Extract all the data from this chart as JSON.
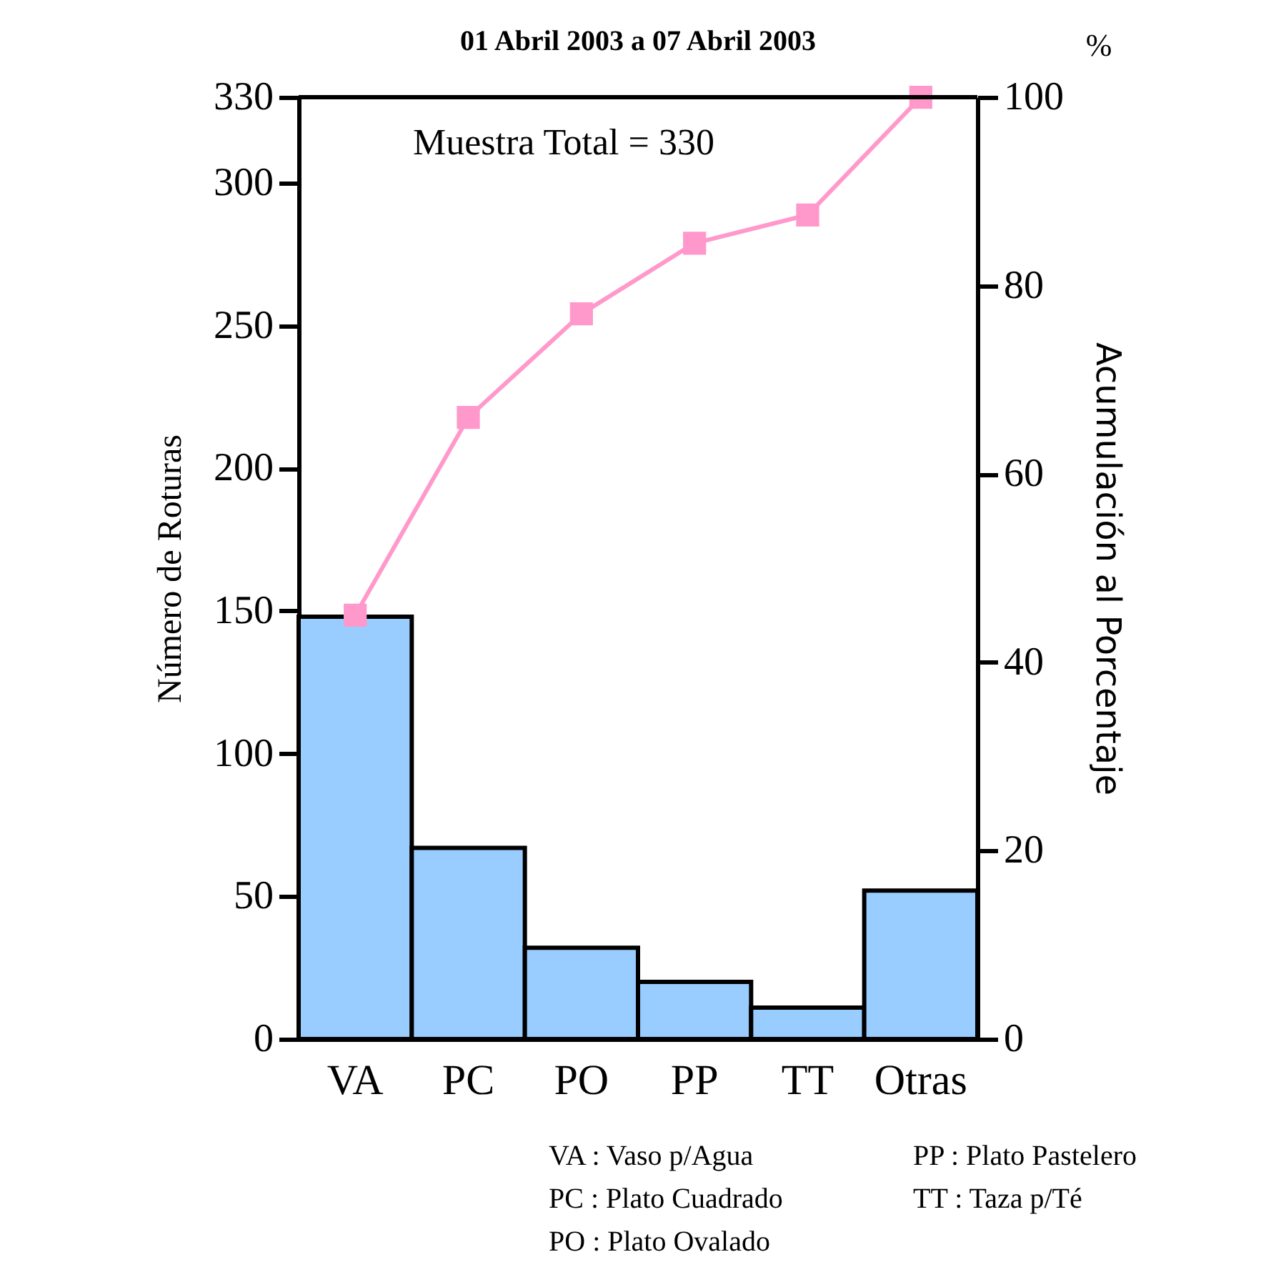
{
  "chart_data": {
    "type": "bar",
    "title": "01 Abril 2003 a 07 Abril 2003",
    "ylabel": "Número de Roturas",
    "y2label": "Acumulación al Porcentaje",
    "categories": [
      "VA",
      "PC",
      "PO",
      "PP",
      "TT",
      "Otras"
    ],
    "series": [
      {
        "color": "#99ccff",
        "values": [
          148,
          67,
          32,
          20,
          11,
          52
        ]
      },
      {
        "type": "line",
        "axis": "y2",
        "color": "#ff99cc",
        "values": [
          45,
          66,
          77,
          84.5,
          87.5,
          100
        ]
      }
    ],
    "marker": "square",
    "line_style": "solid",
    "ylim": [
      0,
      330
    ],
    "yticks": [
      0,
      50,
      100,
      150,
      200,
      250,
      300,
      330
    ],
    "y2lim": [
      0,
      100
    ],
    "y2ticks": [
      0,
      20,
      40,
      60,
      80,
      100
    ],
    "annotations": [
      "%",
      "Muestra Total = 330",
      "VA : Vaso p/Agua",
      "PC : Plato Cuadrado",
      "PO : Plato Ovalado",
      "PP : Plato Pastelero",
      "TT : Taza p/Té"
    ],
    "grid": false
  }
}
